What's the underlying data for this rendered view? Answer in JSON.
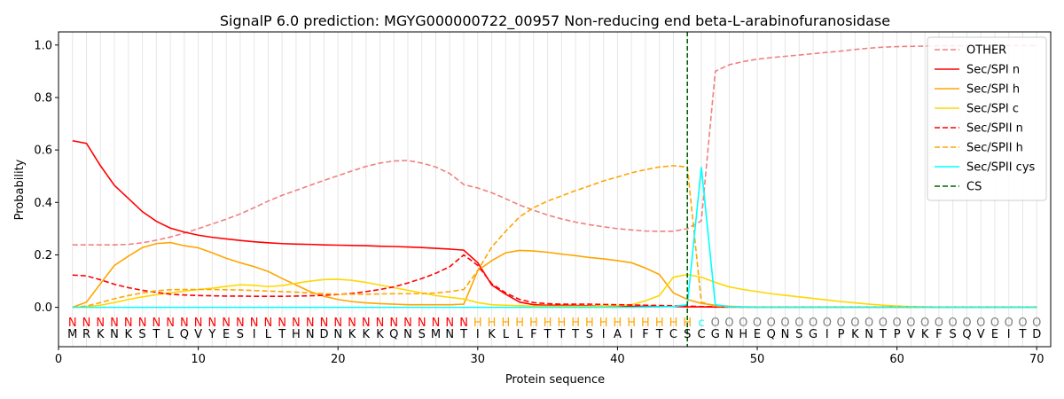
{
  "chart_data": {
    "type": "line",
    "title": "SignalP 6.0 prediction: MGYG000000722_00957 Non-reducing end beta-L-arabinofuranosidase",
    "xlabel": "Protein sequence",
    "ylabel": "Probability",
    "xlim": [
      0,
      71
    ],
    "ylim": [
      -0.15,
      1.05
    ],
    "xticks": [
      0,
      10,
      20,
      30,
      40,
      50,
      60,
      70
    ],
    "yticks": [
      0.0,
      0.2,
      0.4,
      0.6,
      0.8,
      1.0
    ],
    "xtick_labels": [
      "0",
      "10",
      "20",
      "30",
      "40",
      "50",
      "60",
      "70"
    ],
    "ytick_labels": [
      "0.0",
      "0.2",
      "0.4",
      "0.6",
      "0.8",
      "1.0"
    ],
    "grid": "vertical lines at each residue",
    "legend_position": "top-right",
    "sequence": [
      "M",
      "R",
      "K",
      "N",
      "K",
      "S",
      "T",
      "L",
      "Q",
      "V",
      "Y",
      "E",
      "S",
      "I",
      "L",
      "T",
      "H",
      "N",
      "D",
      "N",
      "K",
      "K",
      "K",
      "Q",
      "N",
      "S",
      "M",
      "N",
      "T",
      "I",
      "K",
      "L",
      "L",
      "F",
      "T",
      "T",
      "T",
      "S",
      "I",
      "A",
      "I",
      "F",
      "T",
      "C",
      "S",
      "C",
      "G",
      "N",
      "H",
      "E",
      "Q",
      "N",
      "S",
      "G",
      "I",
      "P",
      "K",
      "N",
      "T",
      "P",
      "V",
      "K",
      "F",
      "S",
      "Q",
      "V",
      "E",
      "I",
      "T",
      "D"
    ],
    "region_labels": [
      "N",
      "N",
      "N",
      "N",
      "N",
      "N",
      "N",
      "N",
      "N",
      "N",
      "N",
      "N",
      "N",
      "N",
      "N",
      "N",
      "N",
      "N",
      "N",
      "N",
      "N",
      "N",
      "N",
      "N",
      "N",
      "N",
      "N",
      "N",
      "N",
      "H",
      "H",
      "H",
      "H",
      "H",
      "H",
      "H",
      "H",
      "H",
      "H",
      "H",
      "H",
      "H",
      "H",
      "H",
      "H",
      "C",
      "O",
      "O",
      "O",
      "O",
      "O",
      "O",
      "O",
      "O",
      "O",
      "O",
      "O",
      "O",
      "O",
      "O",
      "O",
      "O",
      "O",
      "O",
      "O",
      "O",
      "O",
      "O",
      "O",
      "O"
    ],
    "region_colors": {
      "N": "#ff0000",
      "H": "#ffa500",
      "C": "#00ffff",
      "O": "#808080"
    },
    "cs_position": 45,
    "series": [
      {
        "name": "OTHER",
        "color": "#f08080",
        "dash": true,
        "values": [
          0.238,
          0.238,
          0.238,
          0.238,
          0.24,
          0.246,
          0.256,
          0.268,
          0.283,
          0.3,
          0.318,
          0.336,
          0.356,
          0.38,
          0.405,
          0.427,
          0.446,
          0.465,
          0.484,
          0.502,
          0.52,
          0.537,
          0.55,
          0.558,
          0.56,
          0.55,
          0.535,
          0.51,
          0.468,
          0.455,
          0.437,
          0.414,
          0.39,
          0.37,
          0.352,
          0.337,
          0.325,
          0.315,
          0.307,
          0.3,
          0.295,
          0.291,
          0.29,
          0.29,
          0.3,
          0.33,
          0.9,
          0.925,
          0.937,
          0.946,
          0.952,
          0.957,
          0.962,
          0.967,
          0.972,
          0.977,
          0.983,
          0.988,
          0.992,
          0.994,
          0.995,
          0.996,
          0.997,
          0.997,
          0.998,
          0.998,
          0.998,
          0.998,
          0.998,
          0.998
        ]
      },
      {
        "name": "Sec/SPI n",
        "color": "#ff0000",
        "dash": false,
        "values": [
          0.635,
          0.625,
          0.54,
          0.465,
          0.415,
          0.365,
          0.328,
          0.302,
          0.287,
          0.275,
          0.267,
          0.261,
          0.255,
          0.25,
          0.246,
          0.243,
          0.241,
          0.24,
          0.238,
          0.237,
          0.236,
          0.235,
          0.233,
          0.232,
          0.23,
          0.228,
          0.225,
          0.222,
          0.218,
          0.17,
          0.085,
          0.05,
          0.02,
          0.01,
          0.008,
          0.008,
          0.007,
          0.006,
          0.005,
          0.005,
          0.004,
          0.004,
          0.003,
          0.003,
          0.002,
          0.002,
          0.001,
          0.001,
          0.001,
          0.001,
          0.001,
          0.001,
          0.001,
          0.001,
          0.001,
          0.001,
          0.001,
          0.001,
          0.001,
          0.001,
          0.001,
          0.001,
          0.001,
          0.001,
          0.001,
          0.001,
          0.001,
          0.001,
          0.001,
          0.001
        ]
      },
      {
        "name": "Sec/SPI h",
        "color": "#ffa500",
        "dash": false,
        "values": [
          0.0,
          0.02,
          0.09,
          0.16,
          0.195,
          0.228,
          0.243,
          0.247,
          0.235,
          0.227,
          0.208,
          0.187,
          0.17,
          0.155,
          0.137,
          0.11,
          0.085,
          0.06,
          0.042,
          0.03,
          0.022,
          0.017,
          0.014,
          0.012,
          0.01,
          0.01,
          0.01,
          0.01,
          0.012,
          0.14,
          0.178,
          0.208,
          0.217,
          0.215,
          0.21,
          0.203,
          0.197,
          0.19,
          0.185,
          0.178,
          0.17,
          0.15,
          0.125,
          0.055,
          0.03,
          0.015,
          0.008,
          0.004,
          0.002,
          0.001,
          0.001,
          0.001,
          0.001,
          0.001,
          0.001,
          0.001,
          0.001,
          0.001,
          0.001,
          0.001,
          0.001,
          0.001,
          0.001,
          0.001,
          0.001,
          0.001,
          0.001,
          0.001,
          0.001,
          0.001
        ]
      },
      {
        "name": "Sec/SPI c",
        "color": "#ffd700",
        "dash": false,
        "values": [
          0.0,
          0.003,
          0.008,
          0.018,
          0.03,
          0.04,
          0.048,
          0.055,
          0.062,
          0.068,
          0.073,
          0.08,
          0.086,
          0.084,
          0.079,
          0.083,
          0.092,
          0.1,
          0.106,
          0.107,
          0.103,
          0.095,
          0.085,
          0.075,
          0.065,
          0.055,
          0.045,
          0.038,
          0.032,
          0.018,
          0.01,
          0.008,
          0.006,
          0.005,
          0.004,
          0.004,
          0.004,
          0.004,
          0.005,
          0.006,
          0.01,
          0.025,
          0.045,
          0.115,
          0.125,
          0.115,
          0.095,
          0.078,
          0.068,
          0.06,
          0.052,
          0.046,
          0.04,
          0.034,
          0.028,
          0.022,
          0.017,
          0.012,
          0.008,
          0.005,
          0.003,
          0.002,
          0.001,
          0.001,
          0.001,
          0.001,
          0.001,
          0.001,
          0.001,
          0.001
        ]
      },
      {
        "name": "Sec/SPII n",
        "color": "#ff0000",
        "dash": true,
        "values": [
          0.123,
          0.12,
          0.105,
          0.088,
          0.075,
          0.065,
          0.057,
          0.05,
          0.047,
          0.045,
          0.044,
          0.043,
          0.043,
          0.042,
          0.042,
          0.042,
          0.043,
          0.044,
          0.046,
          0.049,
          0.053,
          0.06,
          0.068,
          0.078,
          0.093,
          0.11,
          0.13,
          0.155,
          0.2,
          0.16,
          0.09,
          0.055,
          0.03,
          0.018,
          0.014,
          0.012,
          0.012,
          0.012,
          0.011,
          0.01,
          0.009,
          0.008,
          0.007,
          0.006,
          0.005,
          0.003,
          0.002,
          0.001,
          0.001,
          0.001,
          0.001,
          0.001,
          0.001,
          0.001,
          0.001,
          0.001,
          0.001,
          0.001,
          0.001,
          0.001,
          0.001,
          0.001,
          0.001,
          0.001,
          0.001,
          0.001,
          0.001,
          0.001,
          0.001,
          0.001
        ]
      },
      {
        "name": "Sec/SPII h",
        "color": "#ffa500",
        "dash": true,
        "values": [
          0.0,
          0.005,
          0.018,
          0.033,
          0.045,
          0.055,
          0.063,
          0.067,
          0.068,
          0.068,
          0.068,
          0.067,
          0.066,
          0.064,
          0.062,
          0.06,
          0.058,
          0.055,
          0.052,
          0.05,
          0.05,
          0.05,
          0.051,
          0.052,
          0.052,
          0.052,
          0.055,
          0.06,
          0.068,
          0.14,
          0.23,
          0.29,
          0.345,
          0.38,
          0.405,
          0.425,
          0.445,
          0.463,
          0.482,
          0.497,
          0.513,
          0.525,
          0.535,
          0.54,
          0.535,
          0.02,
          0.005,
          0.002,
          0.001,
          0.001,
          0.001,
          0.001,
          0.001,
          0.001,
          0.001,
          0.001,
          0.001,
          0.001,
          0.001,
          0.001,
          0.001,
          0.001,
          0.001,
          0.001,
          0.001,
          0.001,
          0.001,
          0.001,
          0.001,
          0.001
        ]
      },
      {
        "name": "Sec/SPII cys",
        "color": "#00ffff",
        "dash": false,
        "values": [
          0.0,
          0.0,
          0.0,
          0.0,
          0.0,
          0.0,
          0.0,
          0.0,
          0.0,
          0.0,
          0.0,
          0.0,
          0.0,
          0.0,
          0.0,
          0.0,
          0.0,
          0.0,
          0.0,
          0.0,
          0.0,
          0.0,
          0.0,
          0.0,
          0.0,
          0.0,
          0.0,
          0.0,
          0.0,
          0.0,
          0.0,
          0.0,
          0.0,
          0.0,
          0.0,
          0.0,
          0.0,
          0.0,
          0.0,
          0.0,
          0.0,
          0.001,
          0.002,
          0.003,
          0.01,
          0.535,
          0.01,
          0.002,
          0.001,
          0.0,
          0.0,
          0.0,
          0.0,
          0.0,
          0.0,
          0.0,
          0.0,
          0.0,
          0.0,
          0.0,
          0.0,
          0.0,
          0.0,
          0.0,
          0.0,
          0.0,
          0.0,
          0.0,
          0.0,
          0.0
        ]
      }
    ],
    "cs_legend": {
      "name": "CS",
      "color": "#006400"
    }
  }
}
